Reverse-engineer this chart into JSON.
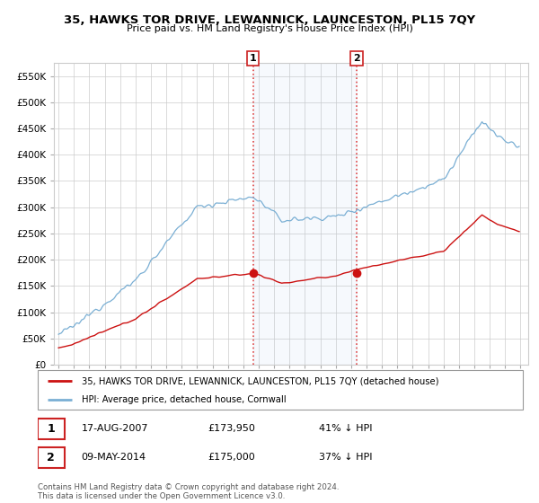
{
  "title": "35, HAWKS TOR DRIVE, LEWANNICK, LAUNCESTON, PL15 7QY",
  "subtitle": "Price paid vs. HM Land Registry's House Price Index (HPI)",
  "ylim": [
    0,
    575000
  ],
  "yticks": [
    0,
    50000,
    100000,
    150000,
    200000,
    250000,
    300000,
    350000,
    400000,
    450000,
    500000,
    550000
  ],
  "hpi_color": "#7aafd4",
  "price_color": "#cc1111",
  "marker1_date": 2007.625,
  "marker1_price": 173950,
  "marker2_date": 2014.354,
  "marker2_price": 175000,
  "legend_line1": "35, HAWKS TOR DRIVE, LEWANNICK, LAUNCESTON, PL15 7QY (detached house)",
  "legend_line2": "HPI: Average price, detached house, Cornwall",
  "annotation1_label": "1",
  "annotation1_date": "17-AUG-2007",
  "annotation1_price": "£173,950",
  "annotation1_hpi": "41% ↓ HPI",
  "annotation2_label": "2",
  "annotation2_date": "09-MAY-2014",
  "annotation2_price": "£175,000",
  "annotation2_hpi": "37% ↓ HPI",
  "footer": "Contains HM Land Registry data © Crown copyright and database right 2024.\nThis data is licensed under the Open Government Licence v3.0.",
  "background_color": "#ffffff",
  "grid_color": "#cccccc"
}
